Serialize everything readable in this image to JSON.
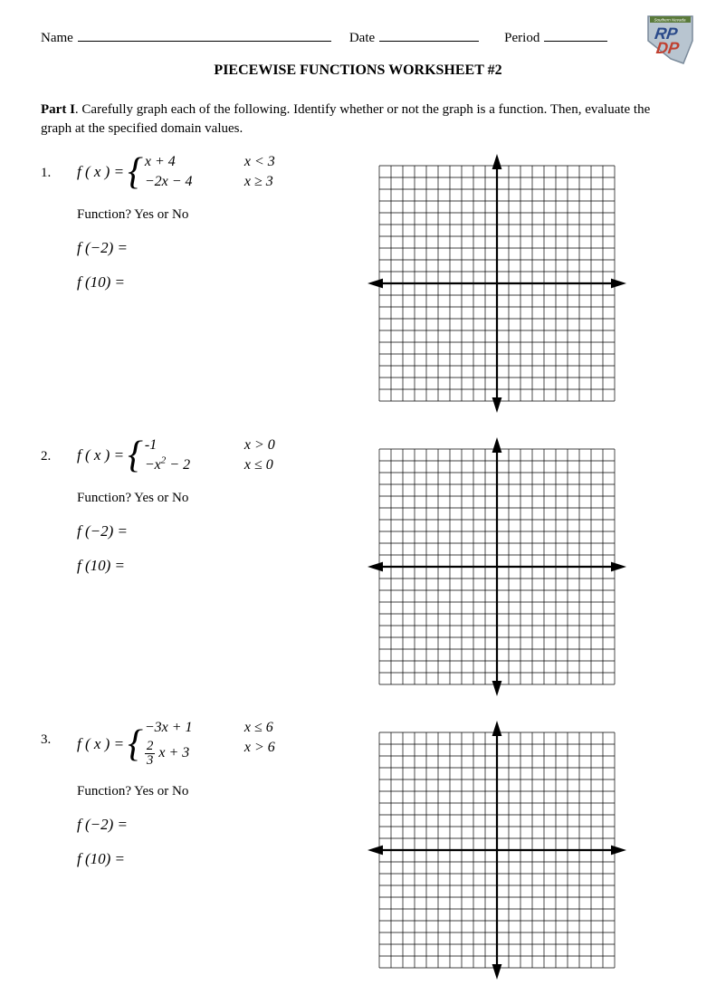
{
  "header": {
    "name_label": "Name",
    "date_label": "Date",
    "period_label": "Period",
    "name_line_width": 280,
    "date_line_width": 110,
    "period_line_width": 70
  },
  "logo": {
    "outline_color": "#7a8a9a",
    "fill_color": "#b8c5d0",
    "text_top": "RP",
    "text_bottom": "DP",
    "text_color_top": "#2a4a8a",
    "text_color_bottom": "#c04030",
    "banner": "Southern Nevada"
  },
  "title": "PIECEWISE FUNCTIONS WORKSHEET #2",
  "instructions": {
    "part_label": "Part I",
    "text": ".  Carefully graph each of the following.  Identify whether or not the graph is a function.  Then, evaluate the graph at the specified domain values."
  },
  "question_label": "Function?   Yes   or   No",
  "eval_labels": {
    "neg2": "f (−2) =",
    "ten": "f (10) ="
  },
  "fx_eq": "f ( x ) =",
  "problems": [
    {
      "num": "1.",
      "pieces": [
        {
          "expr": "x + 4",
          "cond": "x < 3"
        },
        {
          "expr": "−2x − 4",
          "cond": "x ≥ 3"
        }
      ]
    },
    {
      "num": "2.",
      "pieces": [
        {
          "expr": "-1",
          "cond": "x > 0"
        },
        {
          "expr": "−x² − 2",
          "cond": "x ≤ 0"
        }
      ]
    },
    {
      "num": "3.",
      "pieces": [
        {
          "expr": "−3x + 1",
          "cond": "x ≤ 6"
        },
        {
          "expr_frac": {
            "num": "2",
            "den": "3",
            "after": "x + 3"
          },
          "cond": "x > 6"
        }
      ]
    }
  ],
  "grid": {
    "cells": 20,
    "size": 260,
    "line_color": "#000000",
    "line_width": 0.7,
    "axis_width": 2.2,
    "arrow_size": 9,
    "background": "#ffffff"
  }
}
